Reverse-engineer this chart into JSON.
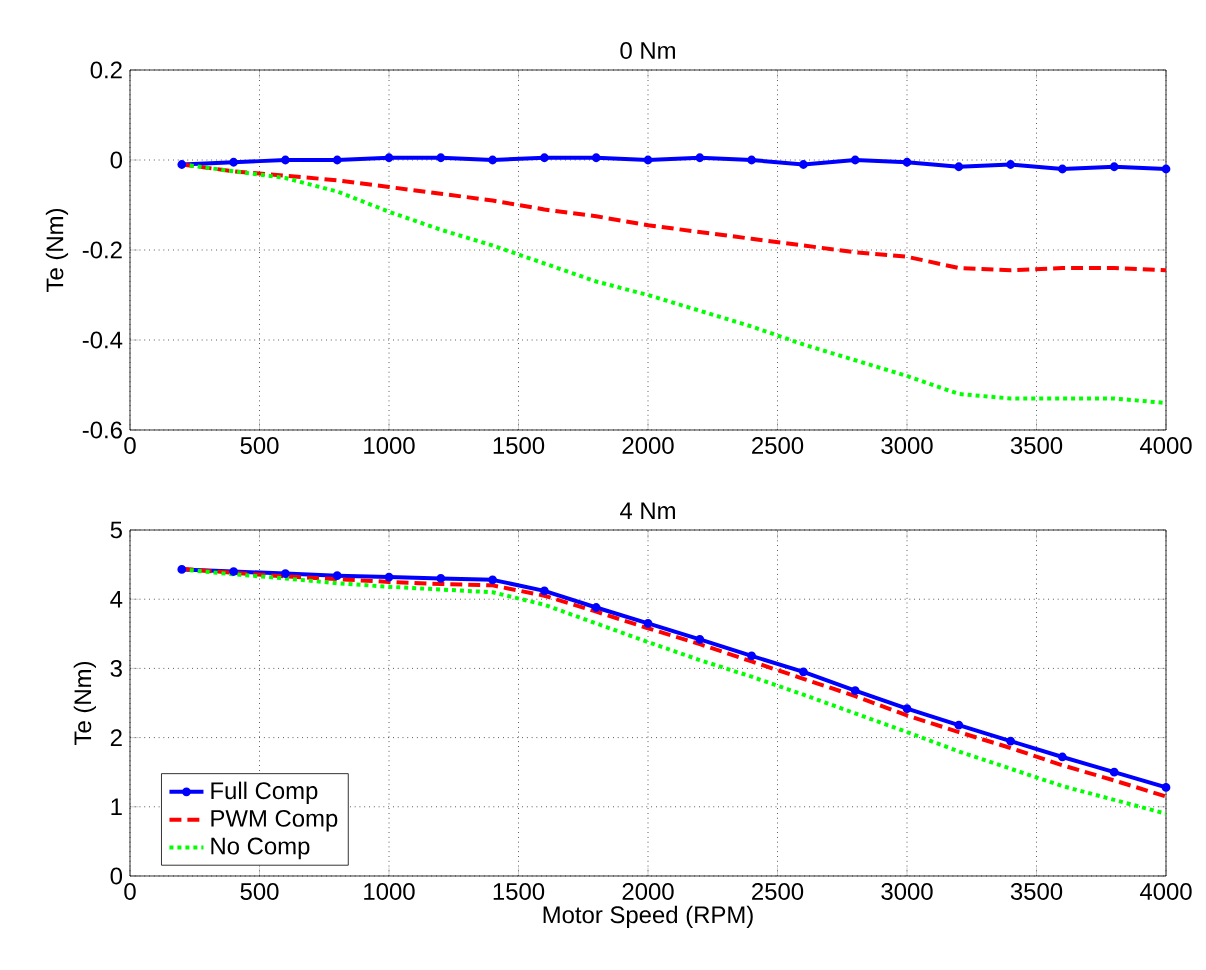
{
  "chart_data": [
    {
      "type": "line",
      "title": "0 Nm",
      "ylabel": "Te (Nm)",
      "xlim": [
        0,
        4000
      ],
      "ylim": [
        -0.6,
        0.2
      ],
      "xticks": [
        0,
        500,
        1000,
        1500,
        2000,
        2500,
        3000,
        3500,
        4000
      ],
      "yticks": [
        -0.6,
        -0.4,
        -0.2,
        0,
        0.2
      ],
      "grid": true,
      "legend": false,
      "x": [
        200,
        400,
        600,
        800,
        1000,
        1200,
        1400,
        1600,
        1800,
        2000,
        2200,
        2400,
        2600,
        2800,
        3000,
        3200,
        3400,
        3600,
        3800,
        4000
      ],
      "series": [
        {
          "color": "#0000ff",
          "marker": "circle",
          "line_style": "solid",
          "values": [
            -0.01,
            -0.005,
            0,
            0,
            0.005,
            0.005,
            0,
            0.005,
            0.005,
            0,
            0.005,
            0,
            -0.01,
            0,
            -0.005,
            -0.015,
            -0.01,
            -0.02,
            -0.015,
            -0.02
          ]
        },
        {
          "color": "#ff0000",
          "marker": "none",
          "line_style": "dashed",
          "values": [
            -0.01,
            -0.025,
            -0.035,
            -0.045,
            -0.06,
            -0.075,
            -0.09,
            -0.11,
            -0.125,
            -0.145,
            -0.16,
            -0.175,
            -0.19,
            -0.205,
            -0.215,
            -0.24,
            -0.245,
            -0.24,
            -0.24,
            -0.245
          ]
        },
        {
          "color": "#00ff00",
          "marker": "none",
          "line_style": "dotted",
          "values": [
            -0.01,
            -0.025,
            -0.04,
            -0.07,
            -0.115,
            -0.155,
            -0.19,
            -0.23,
            -0.27,
            -0.3,
            -0.335,
            -0.37,
            -0.41,
            -0.445,
            -0.48,
            -0.52,
            -0.53,
            -0.53,
            -0.53,
            -0.54
          ]
        }
      ]
    },
    {
      "type": "line",
      "title": "4 Nm",
      "xlabel": "Motor Speed (RPM)",
      "ylabel": "Te (Nm)",
      "xlim": [
        0,
        4000
      ],
      "ylim": [
        0,
        5
      ],
      "xticks": [
        0,
        500,
        1000,
        1500,
        2000,
        2500,
        3000,
        3500,
        4000
      ],
      "yticks": [
        0,
        1,
        2,
        3,
        4,
        5
      ],
      "grid": true,
      "legend": "bottom left",
      "x": [
        200,
        400,
        600,
        800,
        1000,
        1200,
        1400,
        1600,
        1800,
        2000,
        2200,
        2400,
        2600,
        2800,
        3000,
        3200,
        3400,
        3600,
        3800,
        4000
      ],
      "series": [
        {
          "name": "Full Comp",
          "color": "#0000ff",
          "marker": "circle",
          "line_style": "solid",
          "values": [
            4.43,
            4.4,
            4.37,
            4.34,
            4.32,
            4.3,
            4.28,
            4.12,
            3.88,
            3.65,
            3.42,
            3.18,
            2.95,
            2.68,
            2.42,
            2.18,
            1.95,
            1.72,
            1.5,
            1.28
          ]
        },
        {
          "name": "PWM Comp",
          "color": "#ff0000",
          "marker": "none",
          "line_style": "dashed",
          "values": [
            4.44,
            4.38,
            4.33,
            4.29,
            4.25,
            4.22,
            4.2,
            4.05,
            3.82,
            3.58,
            3.35,
            3.1,
            2.85,
            2.6,
            2.32,
            2.08,
            1.85,
            1.6,
            1.38,
            1.15
          ]
        },
        {
          "name": "No Comp",
          "color": "#00ff00",
          "marker": "none",
          "line_style": "dotted",
          "values": [
            4.43,
            4.36,
            4.3,
            4.23,
            4.18,
            4.14,
            4.1,
            3.92,
            3.65,
            3.38,
            3.12,
            2.88,
            2.62,
            2.35,
            2.08,
            1.8,
            1.55,
            1.3,
            1.1,
            0.9
          ]
        }
      ]
    }
  ]
}
